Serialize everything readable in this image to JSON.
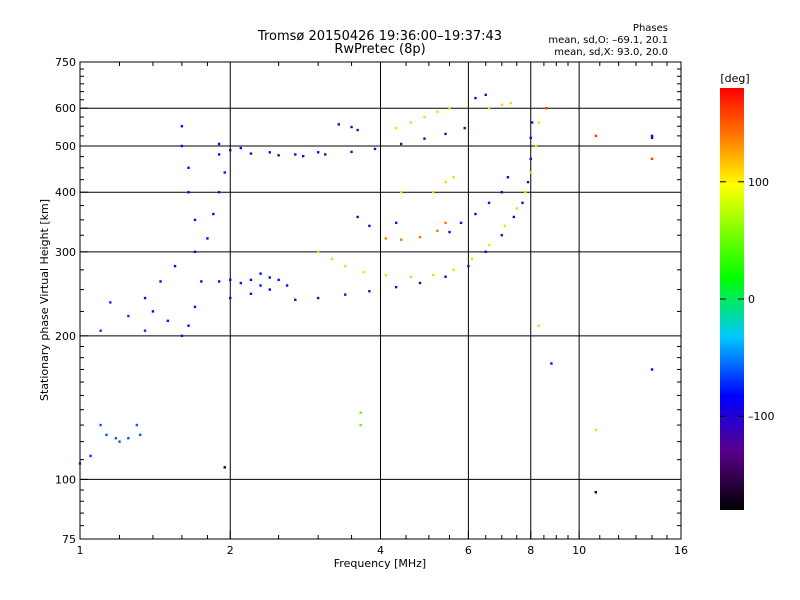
{
  "chart_data": {
    "type": "scatter",
    "title": "Tromsø 20150426 19:36:00–19:37:43",
    "subtitle": "RwPretec (8p)",
    "stats": {
      "heading": "Phases",
      "line_o": "mean, sd,O: –69.1, 20.1",
      "line_x": "mean, sd,X:  93.0, 20.0"
    },
    "xlabel": "Frequency [MHz]",
    "ylabel": "Stationary phase Virtual Height [km]",
    "x_scale": "log",
    "y_scale": "log",
    "xlim": [
      1,
      16
    ],
    "ylim": [
      75,
      750
    ],
    "x_ticks": [
      {
        "value": 1,
        "label": "1"
      },
      {
        "value": 2,
        "label": "2"
      },
      {
        "value": 4,
        "label": "4"
      },
      {
        "value": 6,
        "label": "6"
      },
      {
        "value": 8,
        "label": "8"
      },
      {
        "value": 10,
        "label": "10"
      },
      {
        "value": 16,
        "label": "16"
      }
    ],
    "y_ticks": [
      {
        "value": 75,
        "label": "75"
      },
      {
        "value": 100,
        "label": "100"
      },
      {
        "value": 200,
        "label": "200"
      },
      {
        "value": 300,
        "label": "300"
      },
      {
        "value": 400,
        "label": "400"
      },
      {
        "value": 500,
        "label": "500"
      },
      {
        "value": 600,
        "label": "600"
      },
      {
        "value": 750,
        "label": "750"
      }
    ],
    "grid_x": [
      2,
      4,
      6,
      8,
      10
    ],
    "grid_y": [
      100,
      200,
      300,
      400,
      500,
      600
    ],
    "colorbar": {
      "unit_label": "[deg]",
      "range": [
        -180,
        180
      ],
      "ticks": [
        {
          "value": 100,
          "label": "100"
        },
        {
          "value": 0,
          "label": "0"
        },
        {
          "value": -100,
          "label": "–100"
        }
      ]
    },
    "series": [
      {
        "phase": -110,
        "points": [
          [
            2.0,
            490
          ],
          [
            2.2,
            482
          ],
          [
            2.5,
            478
          ],
          [
            2.8,
            476
          ],
          [
            3.1,
            480
          ],
          [
            3.5,
            486
          ],
          [
            3.9,
            493
          ],
          [
            4.4,
            505
          ],
          [
            4.9,
            518
          ],
          [
            5.4,
            530
          ],
          [
            5.9,
            545
          ]
        ]
      },
      {
        "phase": -80,
        "points": [
          [
            1.9,
            505
          ],
          [
            2.1,
            495
          ],
          [
            2.4,
            485
          ],
          [
            2.7,
            480
          ],
          [
            3.0,
            485
          ]
        ]
      },
      {
        "phase": -110,
        "points": [
          [
            3.3,
            555
          ],
          [
            3.5,
            548
          ],
          [
            3.6,
            540
          ]
        ]
      },
      {
        "phase": 110,
        "points": [
          [
            4.3,
            545
          ],
          [
            4.6,
            560
          ],
          [
            4.9,
            575
          ],
          [
            5.2,
            590
          ],
          [
            5.5,
            600
          ]
        ]
      },
      {
        "phase": 110,
        "points": [
          [
            6.6,
            600
          ],
          [
            7.0,
            610
          ],
          [
            7.3,
            615
          ]
        ]
      },
      {
        "phase": -110,
        "points": [
          [
            6.2,
            630
          ],
          [
            6.5,
            640
          ]
        ]
      },
      {
        "phase": -110,
        "points": [
          [
            2.7,
            238
          ],
          [
            3.0,
            240
          ],
          [
            3.4,
            244
          ],
          [
            3.8,
            248
          ],
          [
            4.3,
            253
          ],
          [
            4.8,
            258
          ],
          [
            5.4,
            266
          ],
          [
            6.0,
            280
          ],
          [
            6.5,
            300
          ],
          [
            7.0,
            325
          ],
          [
            7.4,
            355
          ],
          [
            7.7,
            380
          ],
          [
            7.9,
            420
          ],
          [
            8.0,
            470
          ],
          [
            8.0,
            520
          ],
          [
            8.05,
            560
          ]
        ]
      },
      {
        "phase": 110,
        "points": [
          [
            3.0,
            300
          ],
          [
            3.2,
            290
          ],
          [
            3.4,
            280
          ],
          [
            3.7,
            272
          ],
          [
            4.1,
            268
          ],
          [
            4.6,
            266
          ],
          [
            5.1,
            268
          ],
          [
            5.6,
            275
          ],
          [
            6.1,
            290
          ],
          [
            6.6,
            310
          ],
          [
            7.1,
            340
          ],
          [
            7.5,
            370
          ],
          [
            7.8,
            400
          ],
          [
            8.0,
            440
          ],
          [
            8.2,
            500
          ],
          [
            8.3,
            560
          ]
        ]
      },
      {
        "phase": -80,
        "points": [
          [
            5.5,
            330
          ],
          [
            5.8,
            345
          ],
          [
            6.2,
            360
          ],
          [
            6.6,
            380
          ],
          [
            7.0,
            400
          ],
          [
            7.2,
            430
          ]
        ]
      },
      {
        "phase": 140,
        "points": [
          [
            4.1,
            320
          ],
          [
            4.4,
            318
          ],
          [
            4.8,
            322
          ],
          [
            5.2,
            332
          ],
          [
            5.4,
            345
          ]
        ]
      },
      {
        "phase": -110,
        "points": [
          [
            3.6,
            355
          ],
          [
            3.8,
            340
          ],
          [
            4.3,
            345
          ]
        ]
      },
      {
        "phase": 110,
        "points": [
          [
            5.1,
            400
          ],
          [
            5.4,
            420
          ],
          [
            5.6,
            430
          ],
          [
            4.4,
            400
          ]
        ]
      },
      {
        "phase": -80,
        "points": [
          [
            1.6,
            550
          ],
          [
            1.6,
            500
          ],
          [
            1.65,
            450
          ],
          [
            1.65,
            400
          ],
          [
            1.7,
            350
          ],
          [
            1.7,
            300
          ],
          [
            1.75,
            260
          ],
          [
            1.7,
            230
          ],
          [
            1.65,
            210
          ],
          [
            1.6,
            200
          ],
          [
            1.5,
            215
          ],
          [
            1.4,
            225
          ],
          [
            1.35,
            240
          ],
          [
            1.45,
            260
          ],
          [
            1.55,
            280
          ],
          [
            1.8,
            320
          ],
          [
            1.85,
            360
          ],
          [
            1.9,
            400
          ],
          [
            1.95,
            440
          ],
          [
            1.9,
            480
          ]
        ]
      },
      {
        "phase": -80,
        "points": [
          [
            1.9,
            260
          ],
          [
            2.0,
            262
          ],
          [
            2.1,
            258
          ],
          [
            2.2,
            262
          ],
          [
            2.3,
            270
          ],
          [
            2.4,
            265
          ],
          [
            2.5,
            262
          ],
          [
            2.6,
            255
          ],
          [
            2.4,
            250
          ],
          [
            2.2,
            245
          ],
          [
            2.0,
            240
          ],
          [
            2.3,
            255
          ]
        ]
      },
      {
        "phase": -60,
        "points": [
          [
            1.1,
            130
          ],
          [
            1.13,
            124
          ],
          [
            1.18,
            122
          ],
          [
            1.2,
            120
          ],
          [
            1.25,
            122
          ],
          [
            1.3,
            130
          ],
          [
            1.32,
            124
          ]
        ]
      },
      {
        "phase": -70,
        "points": [
          [
            1.15,
            235
          ],
          [
            1.25,
            220
          ],
          [
            1.35,
            205
          ],
          [
            1.1,
            205
          ],
          [
            1.0,
            108
          ],
          [
            1.05,
            112
          ]
        ]
      },
      {
        "phase": 110,
        "points": [
          [
            10.8,
            127
          ],
          [
            8.3,
            210
          ]
        ]
      },
      {
        "phase": -80,
        "points": [
          [
            14.0,
            525
          ],
          [
            14.0,
            520
          ],
          [
            14.0,
            170
          ],
          [
            8.8,
            175
          ]
        ]
      },
      {
        "phase": 160,
        "points": [
          [
            10.8,
            525
          ],
          [
            14.0,
            470
          ],
          [
            8.6,
            600
          ]
        ]
      },
      {
        "phase": 50,
        "points": [
          [
            3.65,
            130
          ],
          [
            3.65,
            138
          ]
        ]
      },
      {
        "phase": -170,
        "points": [
          [
            1.95,
            106
          ],
          [
            10.8,
            94
          ]
        ]
      }
    ]
  }
}
